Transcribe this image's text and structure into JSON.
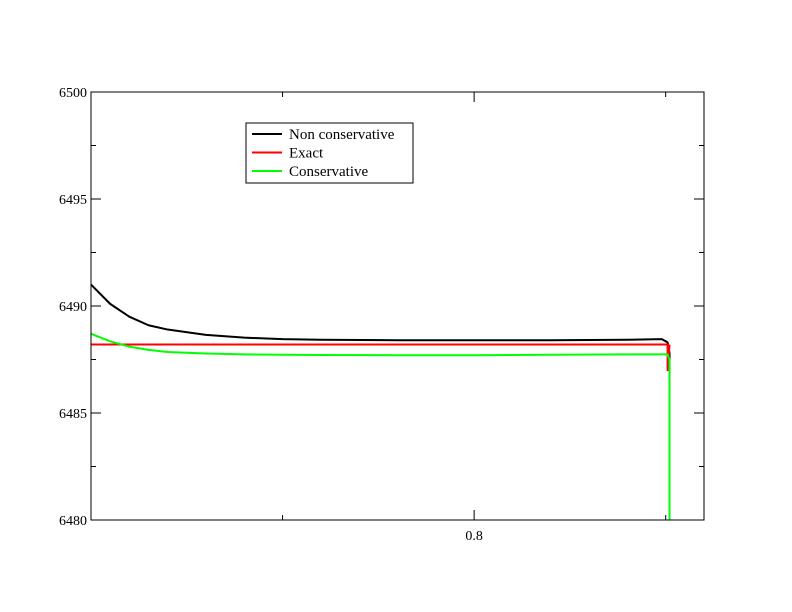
{
  "chart_data": {
    "type": "line",
    "title": "",
    "xlabel": "",
    "ylabel": "",
    "xlim": [
      0.7,
      0.86
    ],
    "ylim": [
      6480,
      6500
    ],
    "x_major_ticks": [
      0.8
    ],
    "x_minor_ticks": [
      0.75,
      0.85
    ],
    "y_major_ticks": [
      6480,
      6485,
      6490,
      6495,
      6500
    ],
    "y_minor_ticks": [
      6482.5,
      6487.5,
      6492.5,
      6497.5
    ],
    "x_tick_labels": [
      "0.8"
    ],
    "y_tick_labels": [
      "6480",
      "6485",
      "6490",
      "6495",
      "6500"
    ],
    "grid": false,
    "legend_position": "top-left",
    "series": [
      {
        "name": "Non conservative",
        "color": "#000000",
        "x": [
          0.7,
          0.705,
          0.71,
          0.715,
          0.72,
          0.73,
          0.74,
          0.75,
          0.76,
          0.78,
          0.8,
          0.82,
          0.84,
          0.849,
          0.8505,
          0.851,
          0.851
        ],
        "y": [
          6491.0,
          6490.1,
          6489.5,
          6489.1,
          6488.9,
          6488.65,
          6488.52,
          6488.45,
          6488.42,
          6488.4,
          6488.4,
          6488.4,
          6488.42,
          6488.45,
          6488.3,
          6487.8,
          6486.3
        ]
      },
      {
        "name": "Exact",
        "color": "#ff0000",
        "x": [
          0.7,
          0.8505,
          0.8505,
          0.851
        ],
        "y": [
          6488.2,
          6488.2,
          6487.0,
          6488.2
        ]
      },
      {
        "name": "Conservative",
        "color": "#00ff00",
        "x": [
          0.7,
          0.705,
          0.71,
          0.715,
          0.72,
          0.73,
          0.74,
          0.75,
          0.76,
          0.78,
          0.8,
          0.82,
          0.84,
          0.8505,
          0.851,
          0.851,
          0.851
        ],
        "y": [
          6488.7,
          6488.35,
          6488.1,
          6487.95,
          6487.85,
          6487.78,
          6487.74,
          6487.72,
          6487.71,
          6487.7,
          6487.7,
          6487.72,
          6487.74,
          6487.74,
          6487.5,
          6483.0,
          6480.0
        ]
      }
    ]
  }
}
